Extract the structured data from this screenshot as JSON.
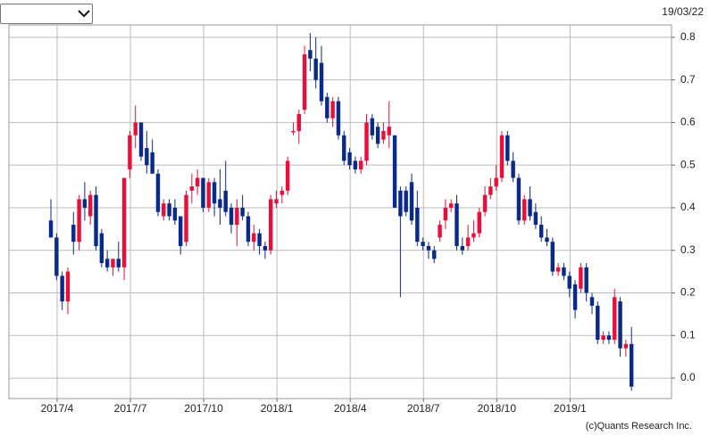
{
  "chart_data": {
    "type": "candlestick",
    "date": "19/03/22",
    "credit": "(c)Quants Research Inc.",
    "up_color": "#e8103a",
    "down_color": "#0a2a8a",
    "grid": true,
    "ylim": [
      -0.048,
      0.829
    ],
    "yticks": [
      {
        "value": 0,
        "label": "0.0"
      },
      0.1,
      0.2,
      0.3,
      0.4,
      0.5,
      0.6,
      0.7,
      0.8
    ],
    "xlim": [
      -7.45,
      110.1
    ],
    "xticks": [
      {
        "value": 1.1,
        "label": "2017/4"
      },
      {
        "value": 14.1,
        "label": "2017/7"
      },
      {
        "value": 27.1,
        "label": "2017/10"
      },
      {
        "value": 40.1,
        "label": "2018/1"
      },
      {
        "value": 53.1,
        "label": "2018/4"
      },
      {
        "value": 66.1,
        "label": "2018/7"
      },
      {
        "value": 79.1,
        "label": "2018/10"
      },
      {
        "value": 92.1,
        "label": "2019/1"
      }
    ],
    "open": [
      0.37,
      0.33,
      0.24,
      0.18,
      0.36,
      0.32,
      0.42,
      0.38,
      0.43,
      0.34,
      0.28,
      0.26,
      0.28,
      0.26,
      0.49,
      0.57,
      0.6,
      0.54,
      0.53,
      0.48,
      0.38,
      0.41,
      0.4,
      0.38,
      0.32,
      0.44,
      0.45,
      0.47,
      0.4,
      0.46,
      0.42,
      0.44,
      0.4,
      0.36,
      0.4,
      0.38,
      0.32,
      0.34,
      0.31,
      0.3,
      0.41,
      0.43,
      0.44,
      0.58,
      0.58,
      0.63,
      0.77,
      0.75,
      0.74,
      0.66,
      0.61,
      0.65,
      0.57,
      0.53,
      0.51,
      0.49,
      0.51,
      0.61,
      0.59,
      0.56,
      0.57,
      0.57,
      0.44,
      0.44,
      0.46,
      0.4,
      0.32,
      0.31,
      0.3,
      0.33,
      0.37,
      0.4,
      0.41,
      0.31,
      0.31,
      0.33,
      0.34,
      0.39,
      0.43,
      0.45,
      0.47,
      0.57,
      0.51,
      0.47,
      0.37,
      0.42,
      0.39,
      0.36,
      0.33,
      0.32,
      0.25,
      0.26,
      0.24,
      0.22,
      0.21,
      0.26,
      0.19,
      0.17,
      0.09,
      0.1,
      0.09,
      0.18,
      0.07,
      0.08
    ],
    "high": [
      0.42,
      0.34,
      0.25,
      0.26,
      0.39,
      0.43,
      0.46,
      0.44,
      0.45,
      0.35,
      0.3,
      0.28,
      0.32,
      0.47,
      0.58,
      0.64,
      0.6,
      0.58,
      0.56,
      0.49,
      0.42,
      0.42,
      0.42,
      0.38,
      0.44,
      0.48,
      0.49,
      0.47,
      0.47,
      0.47,
      0.49,
      0.51,
      0.41,
      0.42,
      0.43,
      0.39,
      0.36,
      0.35,
      0.32,
      0.43,
      0.44,
      0.45,
      0.52,
      0.6,
      0.63,
      0.78,
      0.81,
      0.8,
      0.78,
      0.67,
      0.66,
      0.66,
      0.58,
      0.54,
      0.52,
      0.52,
      0.62,
      0.62,
      0.6,
      0.6,
      0.65,
      0.57,
      0.45,
      0.45,
      0.48,
      0.44,
      0.33,
      0.32,
      0.31,
      0.37,
      0.42,
      0.42,
      0.43,
      0.33,
      0.36,
      0.37,
      0.4,
      0.45,
      0.47,
      0.5,
      0.58,
      0.58,
      0.53,
      0.48,
      0.43,
      0.45,
      0.41,
      0.38,
      0.35,
      0.33,
      0.27,
      0.27,
      0.25,
      0.23,
      0.27,
      0.27,
      0.2,
      0.18,
      0.11,
      0.11,
      0.21,
      0.19,
      0.09,
      0.12
    ],
    "low": [
      0.33,
      0.23,
      0.16,
      0.15,
      0.29,
      0.3,
      0.37,
      0.36,
      0.3,
      0.26,
      0.25,
      0.24,
      0.25,
      0.23,
      0.47,
      0.54,
      0.51,
      0.48,
      0.48,
      0.38,
      0.37,
      0.37,
      0.36,
      0.29,
      0.31,
      0.41,
      0.43,
      0.39,
      0.39,
      0.38,
      0.36,
      0.38,
      0.34,
      0.31,
      0.37,
      0.31,
      0.3,
      0.29,
      0.28,
      0.29,
      0.4,
      0.41,
      0.43,
      0.57,
      0.55,
      0.62,
      0.72,
      0.68,
      0.64,
      0.6,
      0.59,
      0.56,
      0.5,
      0.49,
      0.48,
      0.48,
      0.5,
      0.56,
      0.54,
      0.55,
      0.54,
      0.4,
      0.19,
      0.38,
      0.36,
      0.31,
      0.3,
      0.28,
      0.27,
      0.32,
      0.35,
      0.39,
      0.3,
      0.29,
      0.3,
      0.32,
      0.33,
      0.38,
      0.42,
      0.44,
      0.46,
      0.5,
      0.46,
      0.36,
      0.36,
      0.37,
      0.35,
      0.32,
      0.31,
      0.24,
      0.24,
      0.23,
      0.19,
      0.14,
      0.2,
      0.18,
      0.15,
      0.08,
      0.08,
      0.08,
      0.08,
      0.05,
      0.05,
      -0.03
    ],
    "close": [
      0.33,
      0.24,
      0.18,
      0.25,
      0.32,
      0.42,
      0.4,
      0.43,
      0.31,
      0.27,
      0.26,
      0.28,
      0.26,
      0.47,
      0.57,
      0.6,
      0.52,
      0.5,
      0.48,
      0.39,
      0.41,
      0.38,
      0.37,
      0.31,
      0.43,
      0.45,
      0.47,
      0.4,
      0.46,
      0.41,
      0.4,
      0.39,
      0.36,
      0.4,
      0.38,
      0.32,
      0.34,
      0.31,
      0.3,
      0.42,
      0.42,
      0.44,
      0.51,
      0.58,
      0.62,
      0.76,
      0.75,
      0.7,
      0.65,
      0.61,
      0.65,
      0.57,
      0.51,
      0.5,
      0.49,
      0.51,
      0.6,
      0.57,
      0.55,
      0.58,
      0.59,
      0.4,
      0.38,
      0.39,
      0.37,
      0.32,
      0.31,
      0.3,
      0.28,
      0.36,
      0.4,
      0.41,
      0.31,
      0.3,
      0.33,
      0.34,
      0.39,
      0.43,
      0.45,
      0.47,
      0.57,
      0.51,
      0.47,
      0.37,
      0.42,
      0.38,
      0.36,
      0.33,
      0.32,
      0.25,
      0.26,
      0.24,
      0.21,
      0.16,
      0.26,
      0.2,
      0.17,
      0.09,
      0.1,
      0.09,
      0.19,
      0.07,
      0.08,
      -0.02
    ]
  }
}
